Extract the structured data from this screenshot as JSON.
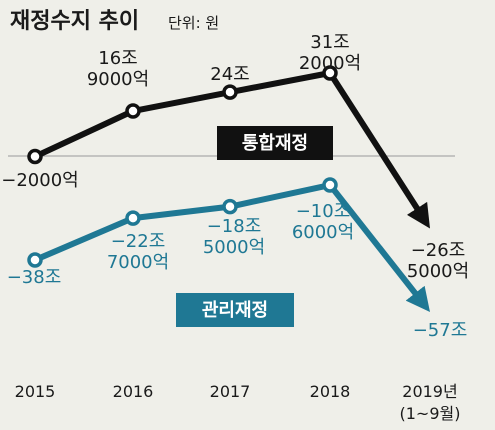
{
  "title": "재정수지 추이",
  "unit": "단위: 원",
  "chart_data": {
    "type": "line",
    "categories": [
      "2015",
      "2016",
      "2017",
      "2018",
      "2019년"
    ],
    "category_sublabels": [
      "",
      "",
      "",
      "",
      "(1~9월)"
    ],
    "unit_note": "단위: 원",
    "ylim": [
      -60,
      35
    ],
    "grid": false,
    "series": [
      {
        "name": "통합재정",
        "color": "#111111",
        "values": [
          -0.2,
          16.9,
          24,
          31.2,
          -26.5
        ],
        "data_labels": [
          [
            "−2000억"
          ],
          [
            "16조",
            "9000억"
          ],
          [
            "24조"
          ],
          [
            "31조",
            "2000억"
          ],
          [
            "−26조",
            "5000억"
          ]
        ]
      },
      {
        "name": "관리재정",
        "color": "#1f7894",
        "values": [
          -38,
          -22.7,
          -18.5,
          -10.6,
          -57
        ],
        "data_labels": [
          [
            "−38조"
          ],
          [
            "−22조",
            "7000억"
          ],
          [
            "−18조",
            "5000억"
          ],
          [
            "−10조",
            "6000억"
          ],
          [
            "−57조"
          ]
        ]
      }
    ]
  }
}
